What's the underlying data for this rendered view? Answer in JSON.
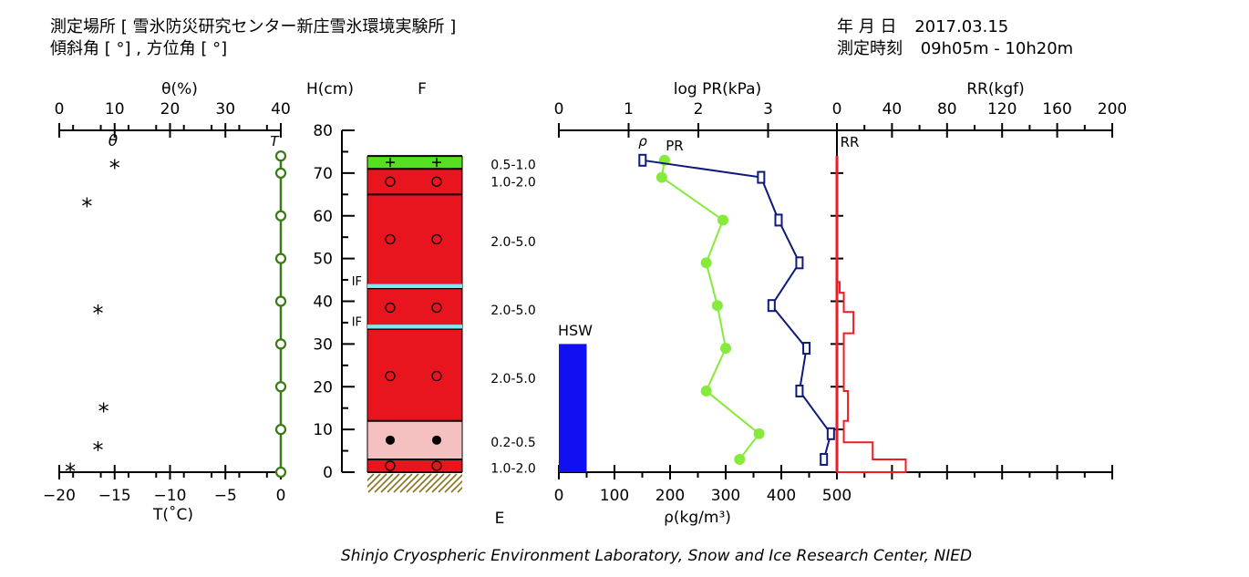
{
  "header": {
    "location_label": "測定場所",
    "location_value": "[ 雪氷防災研究センター新庄雪氷環境実験所 ]",
    "slope_line": "傾斜角 [ °] , 方位角 [ °]",
    "date_label": "年 月 日",
    "date_value": "2017.03.15",
    "time_label": "測定時刻",
    "time_value": "09h05m - 10h20m"
  },
  "footer": "Shinjo Cryospheric Environment Laboratory, Snow and Ice Research Center, NIED",
  "colors": {
    "temperature": "#3a7a14",
    "red_layer": "#e8151f",
    "pink_layer": "#f4c0c0",
    "green_layer": "#55e020",
    "ice_crust": "#7fe8f0",
    "density": "#86ea3a",
    "pr": "#101a7a",
    "rr": "#ee1c24",
    "hsw": "#1010f0",
    "ground": "#8a7420"
  },
  "chart_data": {
    "type": "snow-pit-profile",
    "panels": {
      "left": {
        "top_axis_label": "θ(%)",
        "top_ticks": [
          "0",
          "10",
          "20",
          "30",
          "40"
        ],
        "bottom_axis_label": "T(˚C)",
        "bottom_ticks": [
          "−20",
          "−15",
          "−10",
          "−5",
          "0"
        ],
        "theta_marker": "θ",
        "t_marker": "T"
      },
      "height": {
        "axis_label": "H(cm)",
        "ticks": [
          "80",
          "70",
          "60",
          "50",
          "40",
          "30",
          "20",
          "10",
          "0"
        ],
        "ylim": [
          0,
          80
        ],
        "F_label": "F",
        "E_label": "E"
      },
      "right": {
        "pr_axis_label": "log PR(kPa)",
        "pr_ticks": [
          "0",
          "1",
          "2",
          "3"
        ],
        "rr_axis_label": "RR(kgf)",
        "rr_ticks": [
          "0",
          "40",
          "80",
          "120",
          "160",
          "200"
        ],
        "density_axis_label": "ρ(kg/m³)",
        "density_ticks": [
          "0",
          "100",
          "200",
          "300",
          "400",
          "500"
        ],
        "rho_marker": "ρ",
        "pr_marker": "PR",
        "rr_marker": "RR",
        "hsw_label": "HSW"
      }
    },
    "temperature": {
      "label": "T",
      "heights": [
        74,
        70,
        60,
        50,
        40,
        30,
        20,
        10,
        0
      ],
      "values": [
        0,
        0,
        0,
        0,
        0,
        0,
        0,
        0,
        0
      ]
    },
    "water_content": {
      "label": "θ",
      "heights": [
        72,
        63,
        38,
        15,
        1,
        6
      ],
      "values": [
        10,
        5,
        7,
        8,
        2,
        7
      ]
    },
    "layers": [
      {
        "bottom": 71,
        "top": 74,
        "grain": "+",
        "color": "green",
        "size": "0.5-1.0"
      },
      {
        "bottom": 65,
        "top": 71,
        "grain": "○",
        "color": "red",
        "size": "1.0-2.0"
      },
      {
        "bottom": 43.5,
        "top": 65,
        "grain": "○",
        "color": "red",
        "size": "2.0-5.0"
      },
      {
        "bottom": 34,
        "top": 43.5,
        "grain": "○",
        "color": "red",
        "size": "2.0-5.0"
      },
      {
        "bottom": 12,
        "top": 34,
        "grain": "○",
        "color": "red",
        "size": "2.0-5.0"
      },
      {
        "bottom": 3,
        "top": 12,
        "grain": "●",
        "color": "pink",
        "size": "0.2-0.5"
      },
      {
        "bottom": 0,
        "top": 3,
        "grain": "○",
        "color": "red",
        "size": "1.0-2.0"
      }
    ],
    "ice_crusts": [
      {
        "height": 43.5,
        "label": "IF"
      },
      {
        "height": 34,
        "label": "IF"
      }
    ],
    "grain_marks": [
      {
        "height": 72.5,
        "symbol": "+"
      },
      {
        "height": 68,
        "symbol": "○"
      },
      {
        "height": 54.5,
        "symbol": "○"
      },
      {
        "height": 38.5,
        "symbol": "○"
      },
      {
        "height": 22.5,
        "symbol": "○"
      },
      {
        "height": 7.5,
        "symbol": "●"
      },
      {
        "height": 1.5,
        "symbol": "○"
      }
    ],
    "grain_size_labels": [
      {
        "height": 72,
        "text": "0.5-1.0"
      },
      {
        "height": 68,
        "text": "1.0-2.0"
      },
      {
        "height": 54,
        "text": "2.0-5.0"
      },
      {
        "height": 38,
        "text": "2.0-5.0"
      },
      {
        "height": 22,
        "text": "2.0-5.0"
      },
      {
        "height": 7,
        "text": "0.2-0.5"
      },
      {
        "height": 1,
        "text": "1.0-2.0"
      }
    ],
    "density": {
      "label": "ρ",
      "heights": [
        73,
        69,
        59,
        49,
        39,
        29,
        19,
        9,
        3
      ],
      "values": [
        190,
        185,
        295,
        265,
        285,
        300,
        265,
        360,
        325
      ]
    },
    "pressure": {
      "label": "PR",
      "heights": [
        73,
        69,
        59,
        49,
        39,
        29,
        19,
        9,
        3
      ],
      "values": [
        1.2,
        2.9,
        3.15,
        3.45,
        3.05,
        3.55,
        3.45,
        3.9,
        3.8
      ]
    },
    "ram_resistance": {
      "label": "RR",
      "heights": [
        74,
        44.5,
        42,
        37.5,
        32.5,
        21,
        19,
        12,
        7,
        5,
        3,
        1,
        0
      ],
      "values": [
        0,
        2,
        5,
        12,
        5,
        5,
        8,
        5,
        26,
        26,
        50,
        50,
        0
      ]
    },
    "hsw": {
      "label": "HSW",
      "value": 50,
      "height_top": 30
    }
  }
}
